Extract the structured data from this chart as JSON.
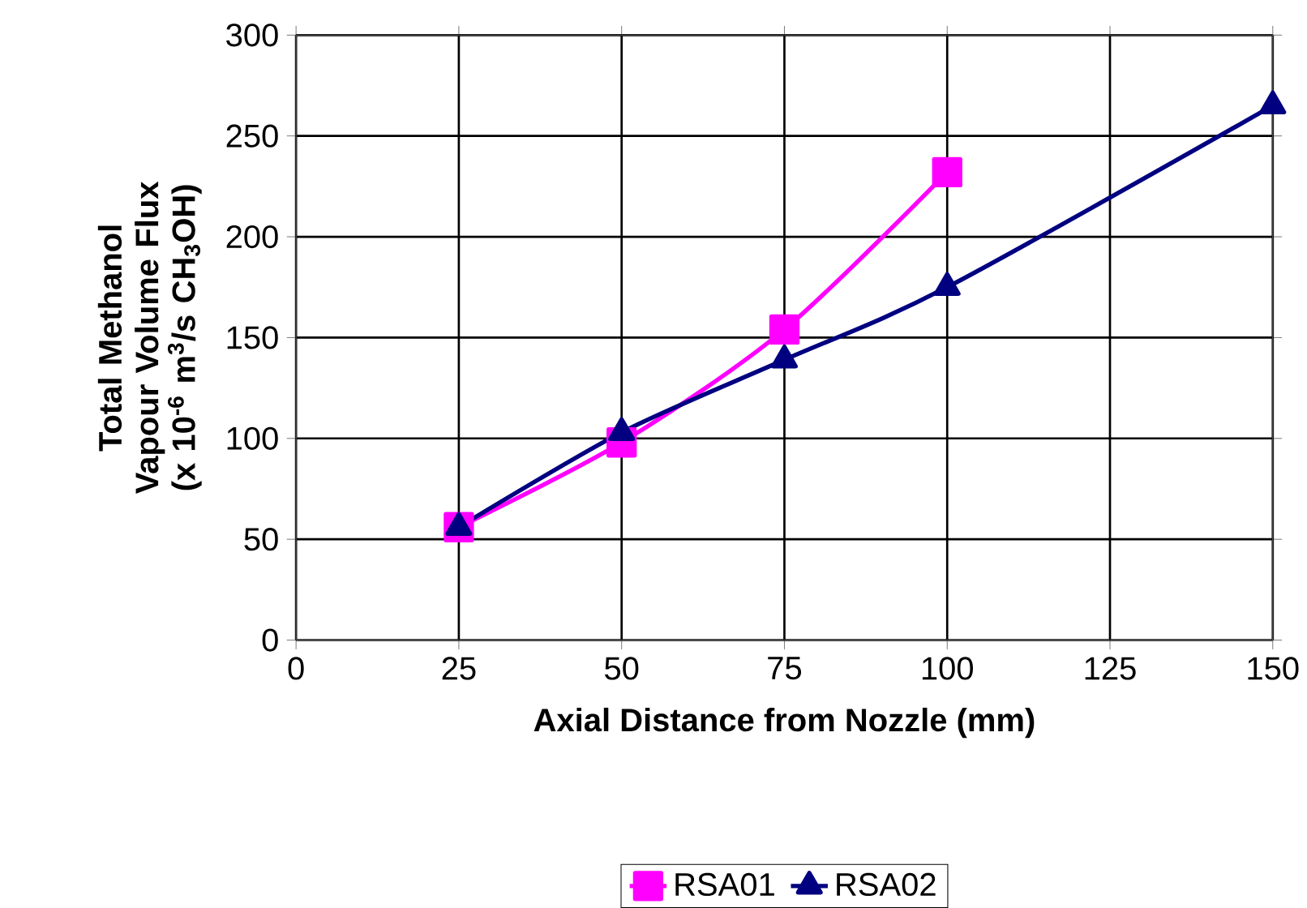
{
  "chart_data": {
    "type": "line",
    "xlabel": "Axial Distance from Nozzle (mm)",
    "ylabel": "Total Methanol Vapour Volume Flux (x 10$^{-6}$ m$^{3}$/s CH$_{3}$OH)",
    "series": [
      {
        "name": "RSA01",
        "color": "#ff00ff",
        "marker": "square",
        "x": [
          25,
          50,
          75,
          100
        ],
        "values": [
          56,
          98,
          154,
          232
        ]
      },
      {
        "name": "RSA02",
        "color": "#000080",
        "marker": "triangle",
        "x": [
          25,
          50,
          75,
          100,
          150
        ],
        "values": [
          56,
          103,
          139,
          175,
          265
        ]
      }
    ],
    "xlim": [
      0,
      150
    ],
    "xticks": [
      0,
      25,
      50,
      75,
      100,
      125,
      150
    ],
    "ylim": [
      0,
      300
    ],
    "yticks": [
      0,
      50,
      100,
      150,
      200,
      250,
      300
    ],
    "grid": true,
    "legend": "bottom",
    "line_style": "solid"
  }
}
